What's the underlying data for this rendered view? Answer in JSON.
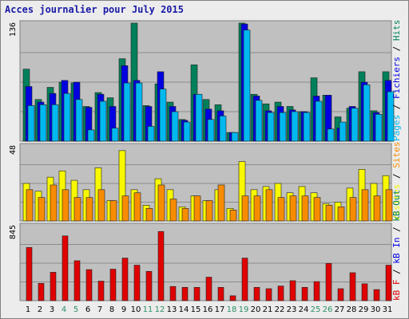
{
  "title": "Acces journalier pour July 2015",
  "colors": {
    "hits": "#00805a",
    "files": "#0000e0",
    "pages": "#00b8f0",
    "visits": "#f8f800",
    "sites": "#f88c00",
    "kb": "#e00000",
    "weekend": "#2c9066",
    "weekday": "#000000"
  },
  "chart_data": [
    {
      "type": "bar",
      "categories": [
        "1",
        "2",
        "3",
        "4",
        "5",
        "6",
        "7",
        "8",
        "9",
        "10",
        "11",
        "12",
        "13",
        "14",
        "15",
        "16",
        "17",
        "18",
        "19",
        "20",
        "21",
        "22",
        "23",
        "24",
        "25",
        "26",
        "27",
        "28",
        "29",
        "30",
        "31"
      ],
      "weekend_days": [
        4,
        5,
        11,
        12,
        18,
        19,
        25,
        26
      ],
      "ylim": [
        0,
        136
      ],
      "ytick_label": "136",
      "legend": [
        {
          "key": "pages",
          "label": "Pages"
        },
        {
          "key": "sep1",
          "label": " / "
        },
        {
          "key": "files",
          "label": "Fichiers"
        },
        {
          "key": "sep2",
          "label": " / "
        },
        {
          "key": "hits",
          "label": "Hits"
        }
      ],
      "series": [
        {
          "key": "hits",
          "values": [
            83,
            48,
            62,
            68,
            67,
            40,
            56,
            50,
            95,
            136,
            41,
            66,
            45,
            25,
            88,
            48,
            42,
            10,
            136,
            54,
            43,
            45,
            40,
            34,
            73,
            53,
            28,
            38,
            80,
            35,
            80
          ]
        },
        {
          "key": "files",
          "values": [
            63,
            45,
            55,
            70,
            68,
            39,
            54,
            40,
            87,
            70,
            40,
            80,
            40,
            24,
            54,
            37,
            35,
            10,
            135,
            52,
            35,
            40,
            36,
            34,
            52,
            53,
            15,
            40,
            68,
            33,
            70
          ]
        },
        {
          "key": "pages",
          "values": [
            41,
            42,
            42,
            55,
            48,
            13,
            46,
            15,
            67,
            67,
            17,
            60,
            34,
            22,
            54,
            25,
            29,
            10,
            128,
            47,
            33,
            33,
            34,
            33,
            46,
            14,
            22,
            38,
            65,
            31,
            57
          ]
        }
      ]
    },
    {
      "type": "bar",
      "ylim": [
        0,
        48
      ],
      "ytick_label": "48",
      "legend": [
        {
          "key": "visits",
          "label": "Visites"
        },
        {
          "key": "sep",
          "label": " / "
        },
        {
          "key": "sites",
          "label": "Sites"
        }
      ],
      "series": [
        {
          "key": "visits",
          "values": [
            24,
            19,
            28,
            32,
            26,
            20,
            34,
            13,
            45,
            20,
            10,
            27,
            20,
            9,
            16,
            13,
            20,
            8,
            38,
            20,
            22,
            24,
            18,
            22,
            18,
            11,
            12,
            21,
            33,
            24,
            29
          ]
        },
        {
          "key": "sites",
          "values": [
            20,
            15,
            23,
            20,
            15,
            15,
            20,
            13,
            16,
            18,
            8,
            23,
            14,
            8,
            16,
            13,
            23,
            7,
            16,
            16,
            20,
            15,
            16,
            16,
            15,
            10,
            9,
            15,
            20,
            16,
            20
          ]
        }
      ]
    },
    {
      "type": "bar",
      "ylim": [
        0,
        845
      ],
      "ytick_label": "845",
      "legend": [
        {
          "key": "kb_f",
          "label": "kB F"
        },
        {
          "key": "sep1",
          "label": " / "
        },
        {
          "key": "kb_in",
          "label": "kB In"
        },
        {
          "key": "sep2",
          "label": " / "
        },
        {
          "key": "kb_out",
          "label": "kB Out"
        }
      ],
      "series": [
        {
          "key": "kb",
          "values": [
            600,
            195,
            320,
            730,
            450,
            350,
            220,
            355,
            480,
            400,
            330,
            780,
            160,
            150,
            150,
            265,
            150,
            55,
            480,
            150,
            135,
            165,
            225,
            150,
            215,
            420,
            135,
            315,
            190,
            125,
            400
          ]
        }
      ]
    }
  ]
}
